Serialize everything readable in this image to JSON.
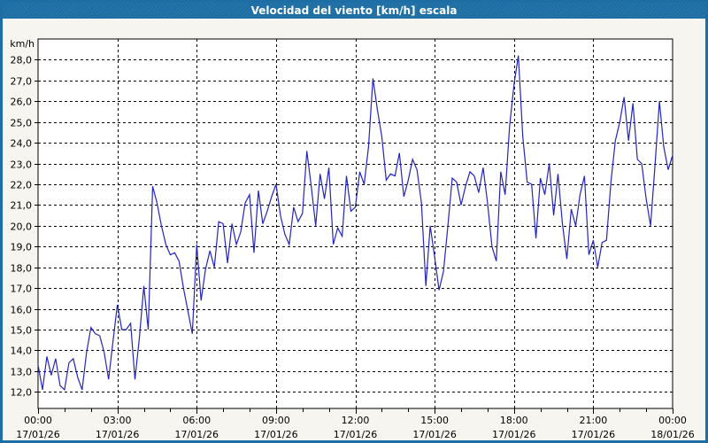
{
  "window": {
    "title": "Velocidad del viento [km/h] escala"
  },
  "colors": {
    "frame": "#1d6ea5",
    "titlebar_background": "#1d6ea5",
    "titlebar_text": "#ffffff",
    "panel_background": "#f6f5ef",
    "plot_background": "#ffffff",
    "grid": "#000000",
    "axis_text": "#000000",
    "line": "#2424c0"
  },
  "chart_data": {
    "type": "line",
    "title": "Velocidad del viento [km/h] escala",
    "ylabel": "km/h",
    "grid": {
      "style": "dashed",
      "color": "#000000"
    },
    "legend_position": "none",
    "x_axis": {
      "range_hours": [
        0,
        24
      ],
      "minor_tick_every_hours": 1,
      "major_ticks": [
        {
          "hour": 0,
          "time": "00:00",
          "date": "17/01/26"
        },
        {
          "hour": 3,
          "time": "03:00",
          "date": "17/01/26"
        },
        {
          "hour": 6,
          "time": "06:00",
          "date": "17/01/26"
        },
        {
          "hour": 9,
          "time": "09:00",
          "date": "17/01/26"
        },
        {
          "hour": 12,
          "time": "12:00",
          "date": "17/01/26"
        },
        {
          "hour": 15,
          "time": "15:00",
          "date": "17/01/26"
        },
        {
          "hour": 18,
          "time": "18:00",
          "date": "17/01/26"
        },
        {
          "hour": 21,
          "time": "21:00",
          "date": "17/01/26"
        },
        {
          "hour": 24,
          "time": "00:00",
          "date": "18/01/26"
        }
      ]
    },
    "y_axis": {
      "unit": "km/h",
      "ylim": [
        11.2,
        29.0
      ],
      "ticks": [
        {
          "value": 28,
          "label": "28,0"
        },
        {
          "value": 27,
          "label": "27,0"
        },
        {
          "value": 26,
          "label": "26,0"
        },
        {
          "value": 25,
          "label": "25,0"
        },
        {
          "value": 24,
          "label": "24,0"
        },
        {
          "value": 23,
          "label": "23,0"
        },
        {
          "value": 22,
          "label": "22,0"
        },
        {
          "value": 21,
          "label": "21,0"
        },
        {
          "value": 20,
          "label": "20,0"
        },
        {
          "value": 19,
          "label": "19,0"
        },
        {
          "value": 18,
          "label": "18,0"
        },
        {
          "value": 17,
          "label": "17,0"
        },
        {
          "value": 16,
          "label": "16,0"
        },
        {
          "value": 15,
          "label": "15,0"
        },
        {
          "value": 14,
          "label": "14,0"
        },
        {
          "value": 13,
          "label": "13,0"
        },
        {
          "value": 12,
          "label": "12,0"
        }
      ]
    },
    "series": [
      {
        "name": "Velocidad del viento [km/h]",
        "color": "#2424c0",
        "sample_interval_minutes": 10,
        "points": [
          [
            "00:00",
            13.3
          ],
          [
            "00:10",
            12.1
          ],
          [
            "00:20",
            13.7
          ],
          [
            "00:30",
            12.8
          ],
          [
            "00:40",
            13.6
          ],
          [
            "00:50",
            12.3
          ],
          [
            "01:00",
            12.1
          ],
          [
            "01:10",
            13.4
          ],
          [
            "01:20",
            13.6
          ],
          [
            "01:30",
            12.7
          ],
          [
            "01:40",
            12.1
          ],
          [
            "01:50",
            13.9
          ],
          [
            "02:00",
            15.1
          ],
          [
            "02:10",
            14.8
          ],
          [
            "02:20",
            14.7
          ],
          [
            "02:30",
            13.9
          ],
          [
            "02:40",
            12.6
          ],
          [
            "02:50",
            14.4
          ],
          [
            "03:00",
            16.2
          ],
          [
            "03:10",
            15.0
          ],
          [
            "03:20",
            15.0
          ],
          [
            "03:30",
            15.3
          ],
          [
            "03:40",
            12.6
          ],
          [
            "03:50",
            14.6
          ],
          [
            "04:00",
            17.1
          ],
          [
            "04:10",
            15.0
          ],
          [
            "04:20",
            21.9
          ],
          [
            "04:30",
            21.1
          ],
          [
            "04:40",
            20.0
          ],
          [
            "04:50",
            19.1
          ],
          [
            "05:00",
            18.6
          ],
          [
            "05:10",
            18.7
          ],
          [
            "05:20",
            18.3
          ],
          [
            "05:30",
            17.0
          ],
          [
            "05:40",
            15.9
          ],
          [
            "05:50",
            14.8
          ],
          [
            "06:00",
            19.1
          ],
          [
            "06:10",
            16.4
          ],
          [
            "06:20",
            17.9
          ],
          [
            "06:30",
            18.8
          ],
          [
            "06:40",
            18.0
          ],
          [
            "06:50",
            20.2
          ],
          [
            "07:00",
            20.1
          ],
          [
            "07:10",
            18.2
          ],
          [
            "07:20",
            20.1
          ],
          [
            "07:30",
            19.1
          ],
          [
            "07:40",
            19.7
          ],
          [
            "07:50",
            21.1
          ],
          [
            "08:00",
            21.5
          ],
          [
            "08:10",
            18.7
          ],
          [
            "08:20",
            21.7
          ],
          [
            "08:30",
            20.1
          ],
          [
            "08:40",
            20.7
          ],
          [
            "08:50",
            21.4
          ],
          [
            "09:00",
            22.0
          ],
          [
            "09:10",
            20.5
          ],
          [
            "09:20",
            19.6
          ],
          [
            "09:30",
            19.1
          ],
          [
            "09:40",
            20.9
          ],
          [
            "09:50",
            20.2
          ],
          [
            "10:00",
            20.6
          ],
          [
            "10:10",
            23.6
          ],
          [
            "10:20",
            21.9
          ],
          [
            "10:30",
            20.0
          ],
          [
            "10:40",
            22.5
          ],
          [
            "10:50",
            21.3
          ],
          [
            "11:00",
            22.8
          ],
          [
            "11:10",
            19.1
          ],
          [
            "11:20",
            19.9
          ],
          [
            "11:30",
            19.5
          ],
          [
            "11:40",
            22.4
          ],
          [
            "11:50",
            20.7
          ],
          [
            "12:00",
            20.9
          ],
          [
            "12:10",
            22.6
          ],
          [
            "12:20",
            22.0
          ],
          [
            "12:30",
            23.8
          ],
          [
            "12:40",
            27.1
          ],
          [
            "12:50",
            25.6
          ],
          [
            "13:00",
            24.3
          ],
          [
            "13:10",
            22.2
          ],
          [
            "13:20",
            22.5
          ],
          [
            "13:30",
            22.4
          ],
          [
            "13:40",
            23.5
          ],
          [
            "13:50",
            21.4
          ],
          [
            "14:00",
            22.2
          ],
          [
            "14:10",
            23.2
          ],
          [
            "14:20",
            22.7
          ],
          [
            "14:30",
            21.1
          ],
          [
            "14:40",
            17.1
          ],
          [
            "14:50",
            20.0
          ],
          [
            "15:00",
            18.5
          ],
          [
            "15:10",
            16.9
          ],
          [
            "15:20",
            17.8
          ],
          [
            "15:30",
            20.0
          ],
          [
            "15:40",
            22.3
          ],
          [
            "15:50",
            22.1
          ],
          [
            "16:00",
            21.0
          ],
          [
            "16:10",
            21.9
          ],
          [
            "16:20",
            22.6
          ],
          [
            "16:30",
            22.4
          ],
          [
            "16:40",
            21.6
          ],
          [
            "16:50",
            22.8
          ],
          [
            "17:00",
            21.1
          ],
          [
            "17:10",
            19.0
          ],
          [
            "17:20",
            18.3
          ],
          [
            "17:30",
            22.6
          ],
          [
            "17:40",
            21.5
          ],
          [
            "17:50",
            24.8
          ],
          [
            "18:00",
            26.8
          ],
          [
            "18:10",
            28.2
          ],
          [
            "18:20",
            24.3
          ],
          [
            "18:30",
            22.1
          ],
          [
            "18:40",
            22.0
          ],
          [
            "18:50",
            19.4
          ],
          [
            "19:00",
            22.3
          ],
          [
            "19:10",
            21.5
          ],
          [
            "19:20",
            23.0
          ],
          [
            "19:30",
            20.5
          ],
          [
            "19:40",
            22.5
          ],
          [
            "19:50",
            20.1
          ],
          [
            "20:00",
            18.4
          ],
          [
            "20:10",
            20.8
          ],
          [
            "20:20",
            20.0
          ],
          [
            "20:30",
            21.5
          ],
          [
            "20:40",
            22.4
          ],
          [
            "20:50",
            18.6
          ],
          [
            "21:00",
            19.3
          ],
          [
            "21:10",
            18.0
          ],
          [
            "21:20",
            19.2
          ],
          [
            "21:30",
            19.3
          ],
          [
            "21:40",
            22.1
          ],
          [
            "21:50",
            24.1
          ],
          [
            "22:00",
            25.0
          ],
          [
            "22:10",
            26.2
          ],
          [
            "22:20",
            24.1
          ],
          [
            "22:30",
            25.9
          ],
          [
            "22:40",
            23.2
          ],
          [
            "22:50",
            23.0
          ],
          [
            "23:00",
            21.3
          ],
          [
            "23:10",
            20.0
          ],
          [
            "23:20",
            22.9
          ],
          [
            "23:30",
            26.0
          ],
          [
            "23:40",
            23.8
          ],
          [
            "23:50",
            22.7
          ],
          [
            "00:00",
            23.4
          ]
        ]
      }
    ]
  }
}
